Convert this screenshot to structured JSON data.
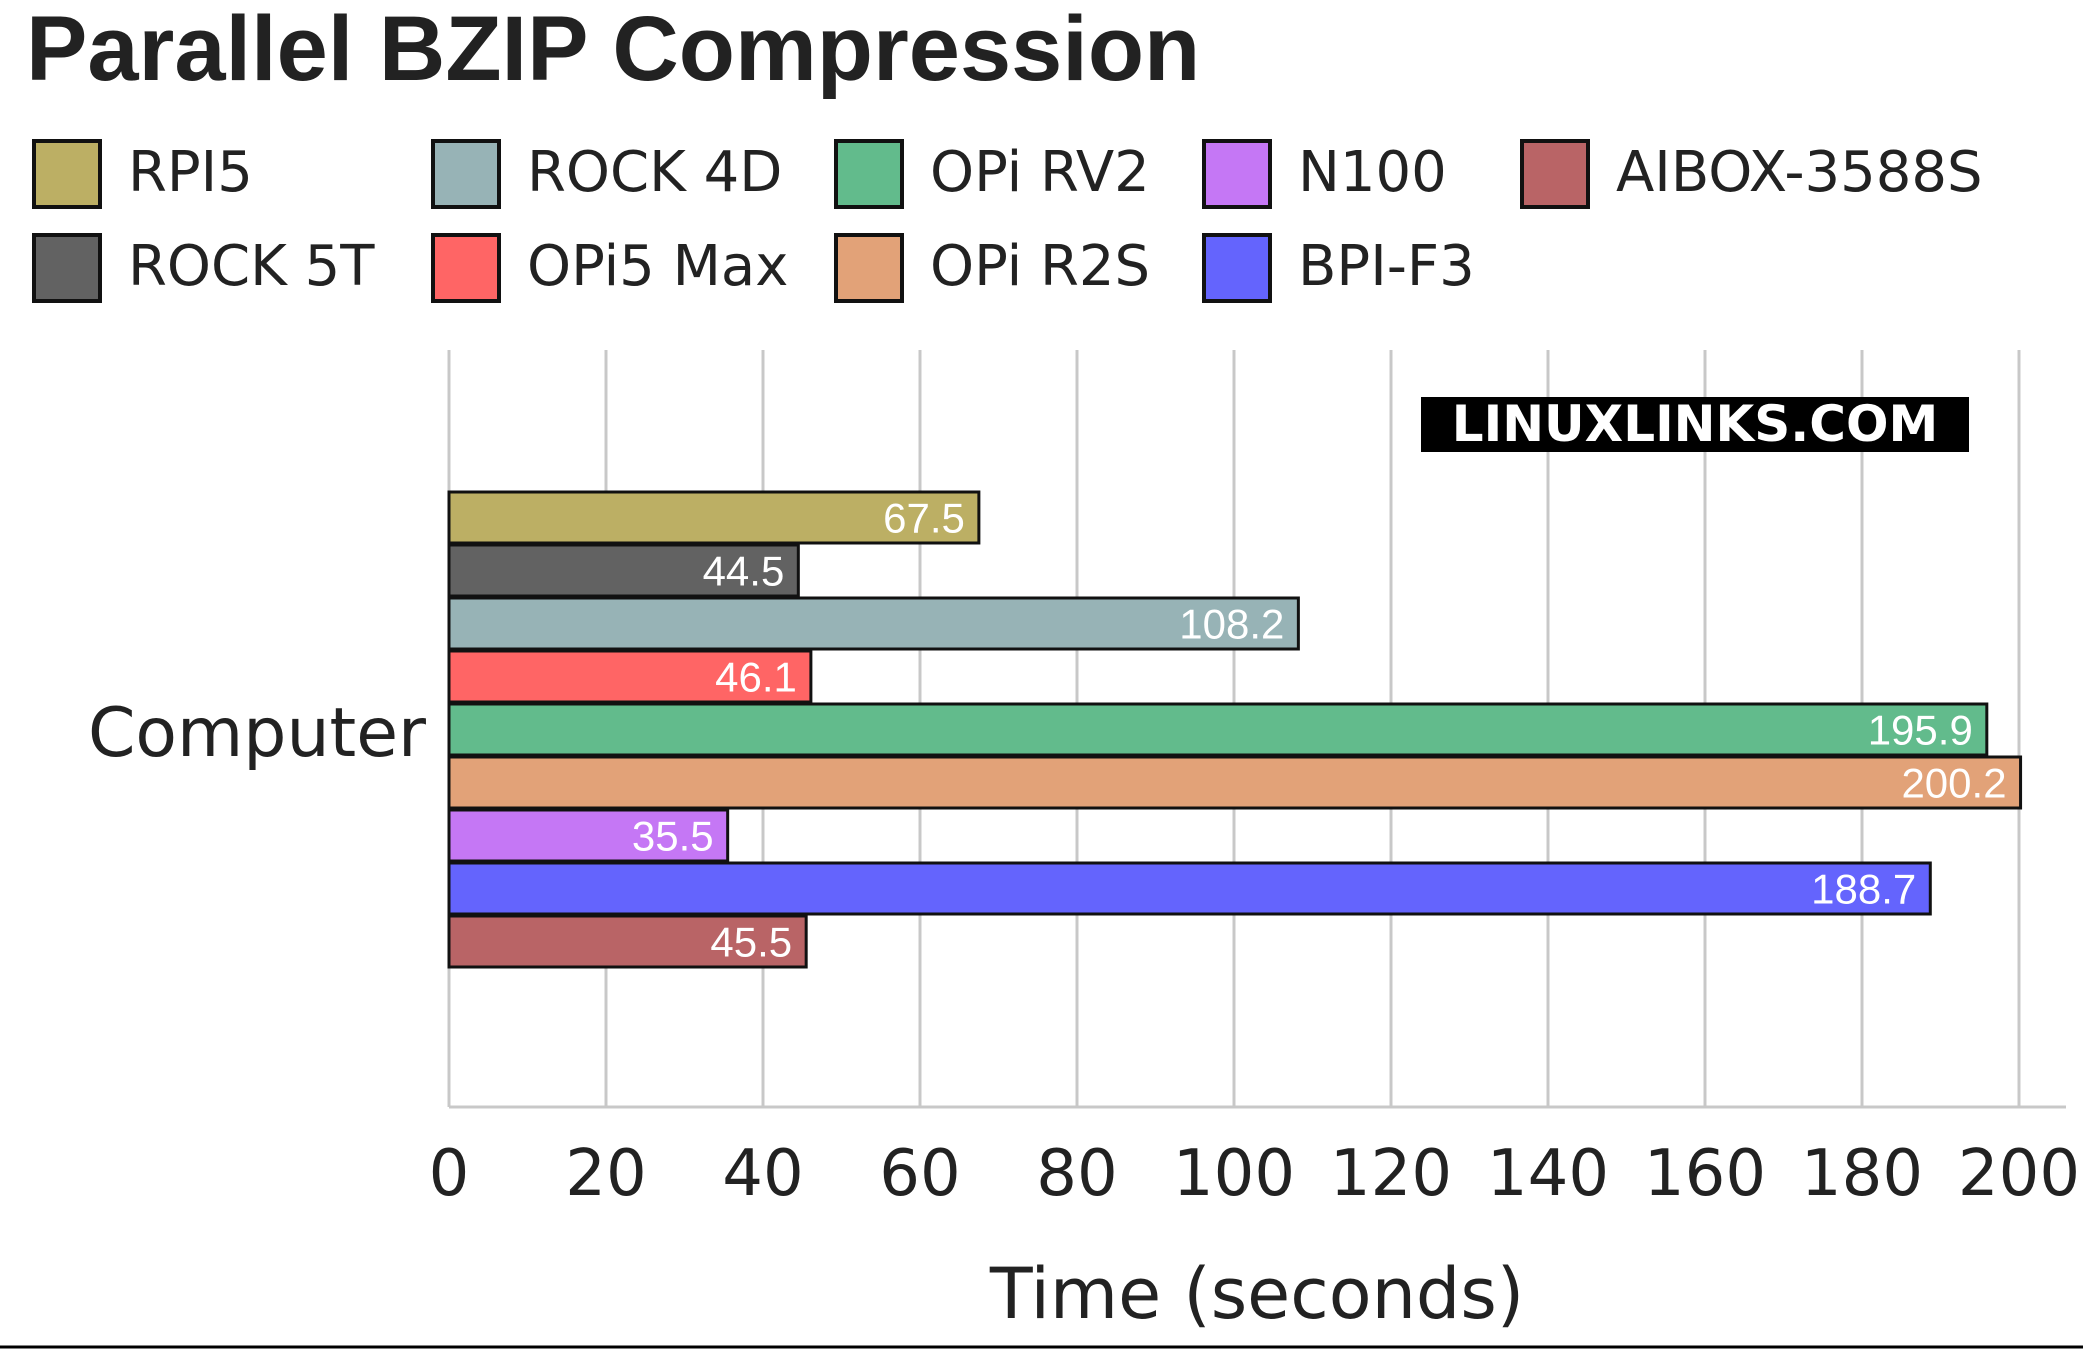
{
  "chart_data": {
    "type": "bar",
    "orientation": "horizontal",
    "title": "Parallel BZIP Compression",
    "xlabel": "Time (seconds)",
    "ylabel": "",
    "categories": [
      "Computer"
    ],
    "xlim": [
      0,
      200
    ],
    "xticks": [
      0,
      20,
      40,
      60,
      80,
      100,
      120,
      140,
      160,
      180,
      200
    ],
    "grid": true,
    "legend_position": "top",
    "watermark": "LINUXLINKS.COM",
    "series": [
      {
        "name": "RPI5",
        "values": [
          67.5
        ],
        "label": "67.5",
        "color": "#bcaf64"
      },
      {
        "name": "ROCK 5T",
        "values": [
          44.5
        ],
        "label": "44.5",
        "color": "#626262"
      },
      {
        "name": "ROCK 4D",
        "values": [
          108.2
        ],
        "label": "108.2",
        "color": "#97b3b6"
      },
      {
        "name": "OPi5 Max",
        "values": [
          46.1
        ],
        "label": "46.1",
        "color": "#ff6565"
      },
      {
        "name": "OPi RV2",
        "values": [
          195.9
        ],
        "label": "195.9",
        "color": "#62bb8c"
      },
      {
        "name": "OPi R2S",
        "values": [
          200.2
        ],
        "label": "200.2",
        "color": "#e2a278"
      },
      {
        "name": "N100",
        "values": [
          35.5
        ],
        "label": "35.5",
        "color": "#c577f5"
      },
      {
        "name": "BPI-F3",
        "values": [
          188.7
        ],
        "label": "188.7",
        "color": "#6464fd"
      },
      {
        "name": "AIBOX-3588S",
        "values": [
          45.5
        ],
        "label": "45.5",
        "color": "#b96466"
      }
    ]
  }
}
